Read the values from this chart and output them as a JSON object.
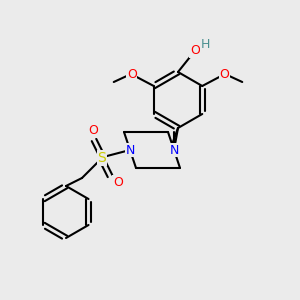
{
  "bg_color": "#ebebeb",
  "bond_color": "#000000",
  "bond_width": 1.5,
  "atom_colors": {
    "O": "#ff0000",
    "N": "#0000ff",
    "S": "#cccc00",
    "H_OH": "#4a9090",
    "C": "#000000"
  },
  "figsize": [
    3.0,
    3.0
  ],
  "dpi": 100
}
